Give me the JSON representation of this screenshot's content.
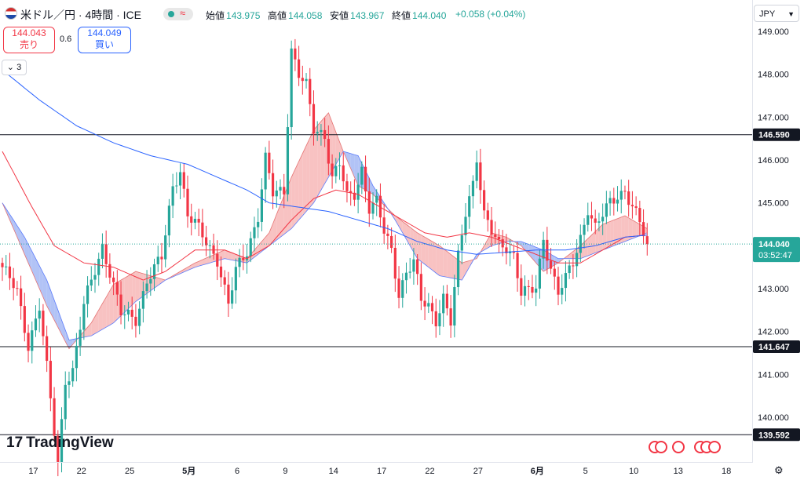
{
  "header": {
    "symbol": "米ドル／円 · 4時間 · ICE",
    "ohlc": [
      {
        "label": "始値",
        "value": "143.975"
      },
      {
        "label": "高値",
        "value": "144.058"
      },
      {
        "label": "安値",
        "value": "143.967"
      },
      {
        "label": "終値",
        "value": "144.040"
      }
    ],
    "change": "+0.058 (+0.04%)",
    "sell": {
      "price": "144.043",
      "label": "売り"
    },
    "buy": {
      "price": "144.049",
      "label": "買い"
    },
    "spread": "0.6",
    "indicator_count": "3"
  },
  "currency": "JPY",
  "logo": "TradingView",
  "colors": {
    "up": "#26a69a",
    "down": "#f23645",
    "ma_fast": "#f23645",
    "ma_slow": "#2962ff",
    "cloud_bull": "#a5b8f5",
    "cloud_bear": "#f7b7b7"
  },
  "chart_data": {
    "type": "candlestick",
    "ylim": [
      139.4,
      149.35
    ],
    "y_ticks": [
      "149.000",
      "148.000",
      "147.000",
      "146.000",
      "145.000",
      "144.000",
      "143.000",
      "142.000",
      "141.000",
      "140.000"
    ],
    "x_ticks": [
      {
        "label": "17",
        "bar": 2
      },
      {
        "label": "22",
        "bar": 15
      },
      {
        "label": "25",
        "bar": 28
      },
      {
        "label": "5月",
        "bar": 44
      },
      {
        "label": "6",
        "bar": 57
      },
      {
        "label": "9",
        "bar": 70
      },
      {
        "label": "14",
        "bar": 83
      },
      {
        "label": "17",
        "bar": 96
      },
      {
        "label": "22",
        "bar": 109
      },
      {
        "label": "27",
        "bar": 122
      },
      {
        "label": "6月",
        "bar": 138
      },
      {
        "label": "5",
        "bar": 151
      },
      {
        "label": "10",
        "bar": 164
      },
      {
        "label": "13",
        "bar": 176
      },
      {
        "label": "18",
        "bar": 189
      }
    ],
    "hlines": [
      {
        "value": 146.59,
        "label": "146.590"
      },
      {
        "value": 141.647,
        "label": "141.647"
      },
      {
        "value": 139.592,
        "label": "139.592"
      }
    ],
    "last_price": {
      "value": 144.04,
      "label": "144.040",
      "countdown": "03:52:47"
    },
    "keyframes": [
      [
        0,
        143.5
      ],
      [
        4,
        142.9
      ],
      [
        7,
        141.7
      ],
      [
        10,
        142.6
      ],
      [
        15,
        138.9
      ],
      [
        17,
        140.9
      ],
      [
        19,
        141.1
      ],
      [
        22,
        142.6
      ],
      [
        27,
        144.0
      ],
      [
        29,
        143.4
      ],
      [
        32,
        142.4
      ],
      [
        36,
        142.3
      ],
      [
        39,
        143.2
      ],
      [
        43,
        143.7
      ],
      [
        46,
        145.4
      ],
      [
        48,
        145.8
      ],
      [
        50,
        144.7
      ],
      [
        52,
        144.5
      ],
      [
        55,
        144.1
      ],
      [
        58,
        143.7
      ],
      [
        61,
        142.6
      ],
      [
        63,
        143.4
      ],
      [
        66,
        143.9
      ],
      [
        69,
        144.7
      ],
      [
        71,
        146.0
      ],
      [
        73,
        145.2
      ],
      [
        76,
        145.3
      ],
      [
        78,
        148.6
      ],
      [
        80,
        148.0
      ],
      [
        82,
        147.7
      ],
      [
        84,
        146.7
      ],
      [
        87,
        146.6
      ],
      [
        89,
        145.6
      ],
      [
        91,
        145.9
      ],
      [
        93,
        145.1
      ],
      [
        95,
        145.2
      ],
      [
        97,
        145.8
      ],
      [
        99,
        144.9
      ],
      [
        101,
        145.0
      ],
      [
        103,
        144.3
      ],
      [
        105,
        143.9
      ],
      [
        107,
        142.9
      ],
      [
        109,
        143.4
      ],
      [
        111,
        143.6
      ],
      [
        113,
        142.7
      ],
      [
        115,
        142.6
      ],
      [
        117,
        142.3
      ],
      [
        119,
        142.8
      ],
      [
        121,
        142.2
      ],
      [
        123,
        143.7
      ],
      [
        125,
        144.8
      ],
      [
        127,
        145.5
      ],
      [
        128,
        146.1
      ],
      [
        130,
        144.7
      ],
      [
        132,
        144.3
      ],
      [
        134,
        144.0
      ],
      [
        136,
        144.0
      ],
      [
        138,
        143.8
      ],
      [
        140,
        142.9
      ],
      [
        142,
        142.9
      ],
      [
        144,
        143.0
      ],
      [
        146,
        144.2
      ],
      [
        148,
        143.5
      ],
      [
        150,
        142.9
      ],
      [
        152,
        143.2
      ],
      [
        154,
        143.6
      ],
      [
        156,
        144.2
      ],
      [
        158,
        144.9
      ],
      [
        160,
        144.4
      ],
      [
        162,
        144.7
      ],
      [
        164,
        145.0
      ],
      [
        166,
        145.2
      ],
      [
        168,
        145.3
      ],
      [
        170,
        144.9
      ],
      [
        172,
        144.5
      ],
      [
        174,
        144.04
      ]
    ],
    "ma_fast_kf": [
      [
        0,
        146.2
      ],
      [
        8,
        144.9
      ],
      [
        14,
        144.0
      ],
      [
        22,
        143.6
      ],
      [
        30,
        143.5
      ],
      [
        38,
        143.2
      ],
      [
        44,
        143.4
      ],
      [
        52,
        143.9
      ],
      [
        60,
        143.9
      ],
      [
        66,
        143.7
      ],
      [
        72,
        144.0
      ],
      [
        78,
        144.6
      ],
      [
        84,
        145.1
      ],
      [
        90,
        145.3
      ],
      [
        96,
        145.2
      ],
      [
        102,
        144.9
      ],
      [
        108,
        144.6
      ],
      [
        114,
        144.3
      ],
      [
        120,
        144.2
      ],
      [
        126,
        144.3
      ],
      [
        132,
        144.2
      ],
      [
        138,
        144.0
      ],
      [
        144,
        143.8
      ],
      [
        150,
        143.6
      ],
      [
        156,
        143.6
      ],
      [
        162,
        143.9
      ],
      [
        168,
        144.2
      ],
      [
        174,
        144.25
      ]
    ],
    "ma_slow_kf": [
      [
        0,
        148.1
      ],
      [
        10,
        147.4
      ],
      [
        20,
        146.8
      ],
      [
        30,
        146.4
      ],
      [
        40,
        146.1
      ],
      [
        50,
        145.9
      ],
      [
        58,
        145.6
      ],
      [
        66,
        145.3
      ],
      [
        72,
        145.0
      ],
      [
        80,
        144.9
      ],
      [
        88,
        144.8
      ],
      [
        96,
        144.6
      ],
      [
        104,
        144.4
      ],
      [
        112,
        144.1
      ],
      [
        120,
        143.9
      ],
      [
        128,
        143.8
      ],
      [
        136,
        143.85
      ],
      [
        144,
        143.9
      ],
      [
        152,
        143.9
      ],
      [
        160,
        144.0
      ],
      [
        168,
        144.2
      ],
      [
        174,
        144.25
      ]
    ],
    "cloud_a_kf": [
      [
        0,
        145.0
      ],
      [
        6,
        143.8
      ],
      [
        12,
        142.6
      ],
      [
        18,
        141.6
      ],
      [
        24,
        142.2
      ],
      [
        30,
        143.1
      ],
      [
        36,
        143.4
      ],
      [
        44,
        143.2
      ],
      [
        52,
        143.6
      ],
      [
        60,
        143.9
      ],
      [
        66,
        143.7
      ],
      [
        72,
        144.3
      ],
      [
        78,
        145.6
      ],
      [
        84,
        146.7
      ],
      [
        88,
        147.1
      ],
      [
        92,
        146.2
      ],
      [
        96,
        145.4
      ],
      [
        100,
        145.2
      ],
      [
        106,
        144.7
      ],
      [
        112,
        144.3
      ],
      [
        118,
        144.0
      ],
      [
        124,
        143.6
      ],
      [
        128,
        143.7
      ],
      [
        132,
        144.3
      ],
      [
        136,
        144.2
      ],
      [
        140,
        144.0
      ],
      [
        146,
        143.4
      ],
      [
        150,
        143.6
      ],
      [
        156,
        144.0
      ],
      [
        162,
        144.5
      ],
      [
        168,
        144.7
      ],
      [
        174,
        144.4
      ]
    ],
    "cloud_b_kf": [
      [
        0,
        145.0
      ],
      [
        6,
        144.2
      ],
      [
        12,
        143.2
      ],
      [
        18,
        141.8
      ],
      [
        24,
        141.9
      ],
      [
        30,
        142.2
      ],
      [
        36,
        142.7
      ],
      [
        44,
        143.2
      ],
      [
        52,
        143.5
      ],
      [
        60,
        143.7
      ],
      [
        66,
        143.6
      ],
      [
        72,
        144.0
      ],
      [
        78,
        144.4
      ],
      [
        84,
        145.0
      ],
      [
        88,
        145.6
      ],
      [
        92,
        146.2
      ],
      [
        96,
        146.1
      ],
      [
        100,
        145.4
      ],
      [
        106,
        144.6
      ],
      [
        112,
        143.7
      ],
      [
        118,
        143.3
      ],
      [
        124,
        143.2
      ],
      [
        128,
        143.8
      ],
      [
        132,
        144.0
      ],
      [
        136,
        144.1
      ],
      [
        140,
        144.1
      ],
      [
        146,
        143.9
      ],
      [
        150,
        143.7
      ],
      [
        156,
        143.7
      ],
      [
        162,
        143.9
      ],
      [
        168,
        144.1
      ],
      [
        174,
        144.3
      ]
    ]
  }
}
